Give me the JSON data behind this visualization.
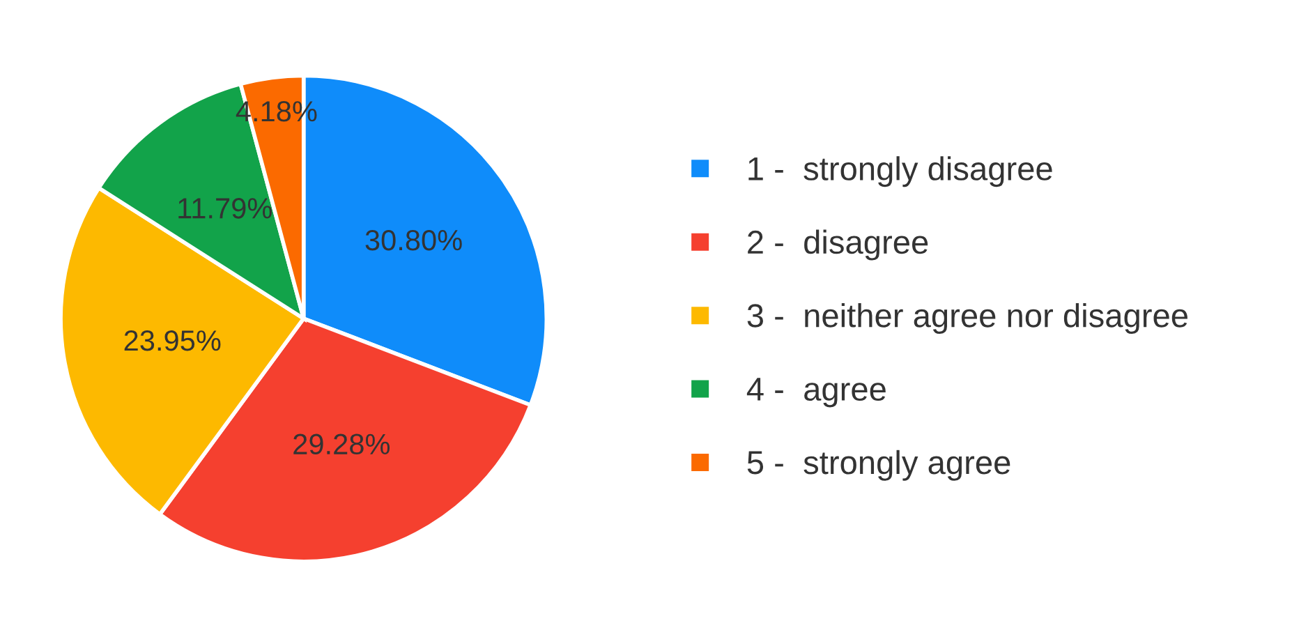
{
  "chart_data": {
    "type": "pie",
    "categories": [
      "1 -  strongly disagree",
      "2 -  disagree",
      "3 -  neither agree nor disagree",
      "4 -  agree",
      "5 -  strongly agree"
    ],
    "values": [
      30.8,
      29.28,
      23.95,
      11.79,
      4.18
    ],
    "colors": [
      "#0f8cfa",
      "#f5402f",
      "#fdb900",
      "#12a34a",
      "#fb6a00"
    ],
    "value_labels": [
      "30.80%",
      "29.28%",
      "23.95%",
      "11.79%",
      "4.18%"
    ],
    "legend": "right"
  }
}
